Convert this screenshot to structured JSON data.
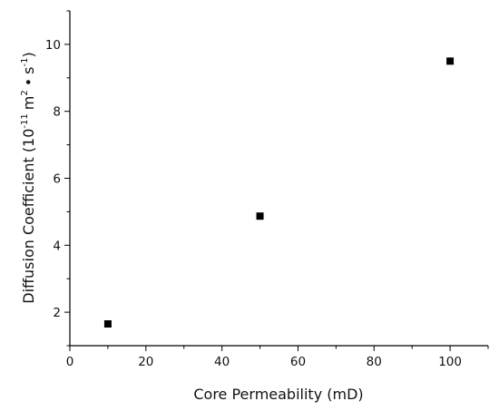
{
  "chart_data": {
    "type": "scatter",
    "xlabel": "Core Permeability (mD)",
    "ylabel": {
      "base": "10",
      "base_exp": "-11",
      "unit1": "m",
      "unit1_exp": "2",
      "dot": "•",
      "unit2": "s",
      "unit2_exp": "-1",
      "prefix": "Diffusion Coefficient ("
    },
    "xlim": [
      0,
      110
    ],
    "ylim": [
      1,
      11
    ],
    "xticks": [
      0,
      20,
      40,
      60,
      80,
      100
    ],
    "yticks": [
      2,
      4,
      6,
      8,
      10
    ],
    "grid": false,
    "legend": "none",
    "series": [
      {
        "marker": "square",
        "color": "#000000",
        "points": [
          {
            "x": 10,
            "y": 1.65
          },
          {
            "x": 50,
            "y": 4.87
          },
          {
            "x": 100,
            "y": 9.5
          }
        ]
      }
    ]
  }
}
